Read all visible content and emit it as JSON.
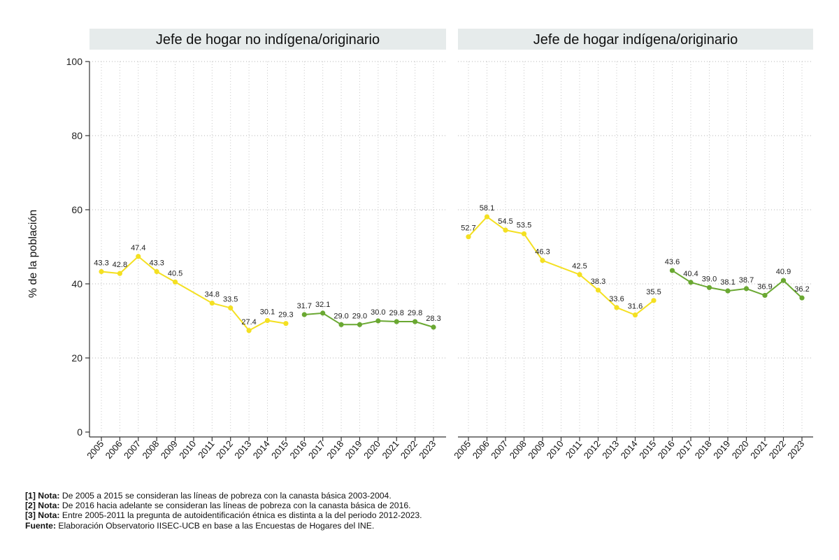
{
  "chart_data": {
    "type": "line",
    "ylabel": "% de la población",
    "ylim": [
      0,
      100
    ],
    "yticks": [
      0,
      20,
      40,
      60,
      80,
      100
    ],
    "grid": true,
    "colors": {
      "period1": "#f4e022",
      "period2": "#6aa832"
    },
    "x": [
      "2005",
      "2006",
      "2007",
      "2008",
      "2009",
      "2010",
      "2011",
      "2012",
      "2013",
      "2014",
      "2015",
      "2016",
      "2017",
      "2018",
      "2019",
      "2020",
      "2021",
      "2022",
      "2023"
    ],
    "panels": [
      {
        "title": "Jefe de hogar no indígena/originario",
        "series": [
          {
            "name": "Canasta básica 2003-2004",
            "color_key": "period1",
            "points": [
              {
                "x": "2005",
                "y": 43.3,
                "label": "43.3"
              },
              {
                "x": "2006",
                "y": 42.8,
                "label": "42.8"
              },
              {
                "x": "2007",
                "y": 47.4,
                "label": "47.4"
              },
              {
                "x": "2008",
                "y": 43.3,
                "label": "43.3"
              },
              {
                "x": "2009",
                "y": 40.5,
                "label": "40.5"
              },
              {
                "x": "2011",
                "y": 34.8,
                "label": "34.8"
              },
              {
                "x": "2012",
                "y": 33.5,
                "label": "33.5"
              },
              {
                "x": "2013",
                "y": 27.4,
                "label": "27.4"
              },
              {
                "x": "2014",
                "y": 30.1,
                "label": "30.1"
              },
              {
                "x": "2015",
                "y": 29.3,
                "label": "29.3"
              }
            ]
          },
          {
            "name": "Canasta básica 2016",
            "color_key": "period2",
            "points": [
              {
                "x": "2016",
                "y": 31.7,
                "label": "31.7"
              },
              {
                "x": "2017",
                "y": 32.1,
                "label": "32.1"
              },
              {
                "x": "2018",
                "y": 29.0,
                "label": "29.0"
              },
              {
                "x": "2019",
                "y": 29.0,
                "label": "29.0"
              },
              {
                "x": "2020",
                "y": 30.0,
                "label": "30.0"
              },
              {
                "x": "2021",
                "y": 29.8,
                "label": "29.8"
              },
              {
                "x": "2022",
                "y": 29.8,
                "label": "29.8"
              },
              {
                "x": "2023",
                "y": 28.3,
                "label": "28.3"
              }
            ]
          }
        ]
      },
      {
        "title": "Jefe de hogar indígena/originario",
        "series": [
          {
            "name": "Canasta básica 2003-2004",
            "color_key": "period1",
            "points": [
              {
                "x": "2005",
                "y": 52.7,
                "label": "52.7"
              },
              {
                "x": "2006",
                "y": 58.1,
                "label": "58.1"
              },
              {
                "x": "2007",
                "y": 54.5,
                "label": "54.5"
              },
              {
                "x": "2008",
                "y": 53.5,
                "label": "53.5"
              },
              {
                "x": "2009",
                "y": 46.3,
                "label": "46.3"
              },
              {
                "x": "2011",
                "y": 42.5,
                "label": "42.5"
              },
              {
                "x": "2012",
                "y": 38.3,
                "label": "38.3"
              },
              {
                "x": "2013",
                "y": 33.6,
                "label": "33.6"
              },
              {
                "x": "2014",
                "y": 31.6,
                "label": "31.6"
              },
              {
                "x": "2015",
                "y": 35.5,
                "label": "35.5"
              }
            ]
          },
          {
            "name": "Canasta básica 2016",
            "color_key": "period2",
            "points": [
              {
                "x": "2016",
                "y": 43.6,
                "label": "43.6"
              },
              {
                "x": "2017",
                "y": 40.4,
                "label": "40.4"
              },
              {
                "x": "2018",
                "y": 39.0,
                "label": "39.0"
              },
              {
                "x": "2019",
                "y": 38.1,
                "label": "38.1"
              },
              {
                "x": "2020",
                "y": 38.7,
                "label": "38.7"
              },
              {
                "x": "2021",
                "y": 36.9,
                "label": "36.9"
              },
              {
                "x": "2022",
                "y": 40.9,
                "label": "40.9"
              },
              {
                "x": "2023",
                "y": 36.2,
                "label": "36.2"
              }
            ]
          }
        ]
      }
    ]
  },
  "notes": [
    {
      "label": "[1] Nota:",
      "text": " De 2005 a 2015 se consideran las líneas de pobreza con la canasta básica 2003-2004."
    },
    {
      "label": "[2] Nota:",
      "text": " De 2016 hacia adelante se consideran las líneas de pobreza con la canasta básica de 2016."
    },
    {
      "label": "[3] Nota:",
      "text": " Entre 2005-2011 la pregunta de autoidentificación étnica es distinta a la del periodo 2012-2023."
    },
    {
      "label": "Fuente:",
      "text": " Elaboración Observatorio IISEC-UCB en base a las Encuestas de Hogares del INE."
    }
  ]
}
